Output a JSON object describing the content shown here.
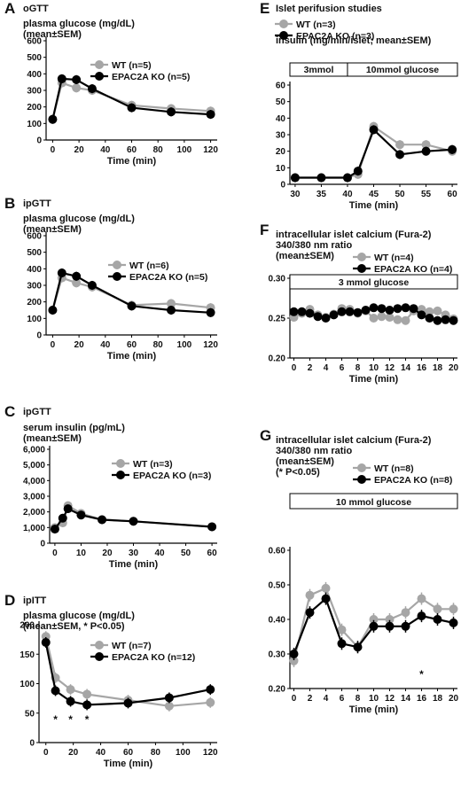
{
  "chart_data": [
    {
      "id": "A",
      "panel_label": "A",
      "type": "line",
      "test_label": "oGTT",
      "title_lines": [
        "plasma glucose (mg/dL)",
        "(mean±SEM)"
      ],
      "xlabel": "Time (min)",
      "xticks": [
        "0",
        "20",
        "40",
        "60",
        "80",
        "100",
        "120"
      ],
      "yticks": [
        "0",
        "100",
        "200",
        "300",
        "400",
        "500",
        "600"
      ],
      "xlim": [
        -5,
        125
      ],
      "ylim": [
        0,
        600
      ],
      "series": [
        {
          "name": "WT",
          "n_text": "(n=5)",
          "color": "#a6a6a6",
          "x": [
            0,
            7,
            18,
            30,
            60,
            90,
            120
          ],
          "y": [
            125,
            345,
            315,
            300,
            210,
            190,
            175
          ]
        },
        {
          "name": "EPAC2A KO",
          "n_text": "(n=5)",
          "color": "#000000",
          "x": [
            0,
            7,
            18,
            30,
            60,
            90,
            120
          ],
          "y": [
            125,
            370,
            365,
            310,
            195,
            170,
            155
          ]
        }
      ]
    },
    {
      "id": "B",
      "panel_label": "B",
      "type": "line",
      "test_label": "ipGTT",
      "title_lines": [
        "plasma glucose (mg/dL)",
        "(mean±SEM)"
      ],
      "xlabel": "Time (min)",
      "xticks": [
        "0",
        "20",
        "40",
        "60",
        "80",
        "100",
        "120"
      ],
      "yticks": [
        "0",
        "100",
        "200",
        "300",
        "400",
        "500",
        "600"
      ],
      "xlim": [
        -5,
        125
      ],
      "ylim": [
        0,
        600
      ],
      "series": [
        {
          "name": "WT",
          "n_text": "(n=6)",
          "color": "#a6a6a6",
          "x": [
            0,
            7,
            18,
            30,
            60,
            90,
            120
          ],
          "y": [
            150,
            345,
            315,
            290,
            180,
            190,
            165
          ]
        },
        {
          "name": "EPAC2A KO",
          "n_text": "(n=5)",
          "color": "#000000",
          "x": [
            0,
            7,
            18,
            30,
            60,
            90,
            120
          ],
          "y": [
            150,
            375,
            355,
            300,
            175,
            150,
            135
          ]
        }
      ]
    },
    {
      "id": "C",
      "panel_label": "C",
      "type": "line",
      "test_label": "ipGTT",
      "title_lines": [
        "serum insulin (pg/mL)",
        "(mean±SEM)"
      ],
      "xlabel": "Time (min)",
      "xticks": [
        "0",
        "10",
        "20",
        "30",
        "40",
        "50",
        "60"
      ],
      "yticks": [
        "0",
        "1,000",
        "2,000",
        "3,000",
        "4,000",
        "5,000",
        "6,000"
      ],
      "xlim": [
        -2,
        62
      ],
      "ylim": [
        0,
        6000
      ],
      "series": [
        {
          "name": "WT",
          "n_text": "(n=3)",
          "color": "#a6a6a6",
          "x": [
            0,
            3,
            5,
            10,
            18,
            30,
            60
          ],
          "y": [
            1000,
            1300,
            2400,
            1900,
            1500,
            1400,
            1050
          ]
        },
        {
          "name": "EPAC2A KO",
          "n_text": "(n=3)",
          "color": "#000000",
          "x": [
            0,
            3,
            5,
            10,
            18,
            30,
            60
          ],
          "y": [
            900,
            1600,
            2200,
            1800,
            1500,
            1400,
            1050
          ]
        }
      ]
    },
    {
      "id": "D",
      "panel_label": "D",
      "type": "line",
      "test_label": "ipITT",
      "title_lines": [
        "plasma glucose (mg/dL)",
        "(mean±SEM, * P<0.05)"
      ],
      "xlabel": "Time (min)",
      "xticks": [
        "0",
        "20",
        "40",
        "60",
        "80",
        "100",
        "120"
      ],
      "yticks": [
        "0",
        "50",
        "100",
        "150",
        "200"
      ],
      "xlim": [
        -5,
        125
      ],
      "ylim": [
        0,
        200
      ],
      "significance_x": [
        7,
        18,
        30
      ],
      "series": [
        {
          "name": "WT",
          "n_text": "(n=7)",
          "color": "#a6a6a6",
          "x": [
            0,
            7,
            18,
            30,
            60,
            90,
            120
          ],
          "y": [
            180,
            110,
            90,
            82,
            72,
            62,
            68
          ]
        },
        {
          "name": "EPAC2A KO",
          "n_text": "(n=12)",
          "color": "#000000",
          "x": [
            0,
            7,
            18,
            30,
            60,
            90,
            120
          ],
          "y": [
            170,
            88,
            70,
            64,
            67,
            76,
            90
          ]
        }
      ]
    },
    {
      "id": "E",
      "panel_label": "E",
      "type": "line",
      "test_label": "Islet perifusion studies",
      "title_lines": [
        "insulin (mg/min/islet; mean±SEM)"
      ],
      "xlabel": "Time (min)",
      "xticks": [
        "30",
        "35",
        "40",
        "45",
        "50",
        "55",
        "60"
      ],
      "yticks": [
        "0",
        "10",
        "20",
        "30",
        "40",
        "50",
        "60"
      ],
      "xlim": [
        29,
        61
      ],
      "ylim": [
        0,
        60
      ],
      "box_labels": [
        {
          "text": "3mmol",
          "x_from": 29,
          "x_to": 40
        },
        {
          "text": "10mmol glucose",
          "x_from": 40,
          "x_to": 61
        }
      ],
      "series": [
        {
          "name": "WT",
          "n_text": "(n=3)",
          "color": "#a6a6a6",
          "x": [
            30,
            35,
            40,
            42,
            45,
            50,
            55,
            60
          ],
          "y": [
            4,
            4,
            4,
            6,
            35,
            24,
            24,
            20
          ]
        },
        {
          "name": "EPAC2A KO",
          "n_text": "(n=3)",
          "color": "#000000",
          "x": [
            30,
            35,
            40,
            42,
            45,
            50,
            55,
            60
          ],
          "y": [
            4,
            4,
            4,
            8,
            33,
            18,
            20,
            21
          ]
        }
      ]
    },
    {
      "id": "F",
      "panel_label": "F",
      "type": "line",
      "test_label": "",
      "title_lines": [
        "intracellular islet calcium (Fura-2)",
        "340/380 nm ratio",
        "(mean±SEM)"
      ],
      "xlabel": "Time (min)",
      "xticks": [
        "0",
        "2",
        "4",
        "6",
        "8",
        "10",
        "12",
        "14",
        "16",
        "18",
        "20"
      ],
      "yticks": [
        "0.20",
        "0.25",
        "0.30"
      ],
      "xlim": [
        -0.5,
        20.5
      ],
      "ylim": [
        0.2,
        0.3
      ],
      "box_labels": [
        {
          "text": "3 mmol glucose",
          "x_from": -0.5,
          "x_to": 20.5
        }
      ],
      "series": [
        {
          "name": "WT",
          "n_text": "(n=4)",
          "color": "#a6a6a6",
          "x": [
            0,
            1,
            2,
            3,
            4,
            5,
            6,
            7,
            8,
            9,
            10,
            11,
            12,
            13,
            14,
            15,
            16,
            17,
            18,
            19,
            20
          ],
          "y": [
            0.251,
            0.256,
            0.261,
            0.254,
            0.251,
            0.255,
            0.262,
            0.261,
            0.256,
            0.259,
            0.25,
            0.252,
            0.251,
            0.248,
            0.247,
            0.259,
            0.261,
            0.258,
            0.259,
            0.254,
            0.249
          ]
        },
        {
          "name": "EPAC2A KO",
          "n_text": "(n=4)",
          "color": "#000000",
          "x": [
            0,
            1,
            2,
            3,
            4,
            5,
            6,
            7,
            8,
            9,
            10,
            11,
            12,
            13,
            14,
            15,
            16,
            17,
            18,
            19,
            20
          ],
          "y": [
            0.258,
            0.258,
            0.256,
            0.252,
            0.25,
            0.254,
            0.258,
            0.258,
            0.257,
            0.26,
            0.263,
            0.262,
            0.26,
            0.262,
            0.263,
            0.262,
            0.254,
            0.25,
            0.247,
            0.248,
            0.247
          ]
        }
      ]
    },
    {
      "id": "G",
      "panel_label": "G",
      "type": "line",
      "test_label": "",
      "title_lines": [
        "intracellular islet calcium (Fura-2)",
        "340/380 nm ratio",
        "(mean±SEM)",
        "(* P<0.05)"
      ],
      "xlabel": "Time (min)",
      "xticks": [
        "0",
        "2",
        "4",
        "6",
        "8",
        "10",
        "12",
        "14",
        "16",
        "18",
        "20"
      ],
      "yticks": [
        "0.20",
        "0.30",
        "0.40",
        "0.50",
        "0.60"
      ],
      "xlim": [
        -0.5,
        20.5
      ],
      "ylim": [
        0.2,
        0.6
      ],
      "box_labels": [
        {
          "text": "10 mmol glucose",
          "x_from": -0.5,
          "x_to": 20.5
        }
      ],
      "significance_x": [
        16
      ],
      "series": [
        {
          "name": "WT",
          "n_text": "(n=8)",
          "color": "#a6a6a6",
          "x": [
            0,
            2,
            4,
            6,
            8,
            10,
            12,
            14,
            16,
            18,
            20
          ],
          "y": [
            0.28,
            0.47,
            0.49,
            0.37,
            0.32,
            0.4,
            0.4,
            0.42,
            0.46,
            0.43,
            0.43
          ]
        },
        {
          "name": "EPAC2A KO",
          "n_text": "(n=8)",
          "color": "#000000",
          "x": [
            0,
            2,
            4,
            6,
            8,
            10,
            12,
            14,
            16,
            18,
            20
          ],
          "y": [
            0.3,
            0.42,
            0.46,
            0.33,
            0.32,
            0.38,
            0.38,
            0.38,
            0.41,
            0.4,
            0.39
          ]
        }
      ]
    }
  ]
}
